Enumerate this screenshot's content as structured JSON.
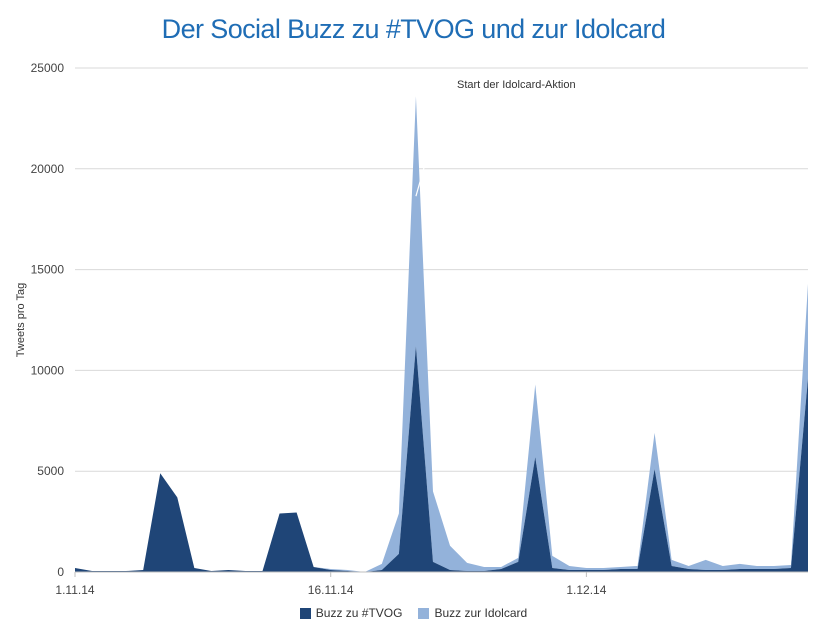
{
  "chart_data": {
    "type": "area",
    "title": "Der Social Buzz zu #TVOG und zur Idolcard",
    "ylabel": "Tweets pro Tag",
    "xlabel": "",
    "ylim": [
      0,
      25000
    ],
    "yticks": [
      0,
      5000,
      10000,
      15000,
      20000,
      25000
    ],
    "x_tick_labels": [
      {
        "index": 0,
        "label": "1.11.14"
      },
      {
        "index": 15,
        "label": "16.11.14"
      },
      {
        "index": 30,
        "label": "1.12.14"
      }
    ],
    "dates": [
      "1.11.14",
      "2.11.14",
      "3.11.14",
      "4.11.14",
      "5.11.14",
      "6.11.14",
      "7.11.14",
      "8.11.14",
      "9.11.14",
      "10.11.14",
      "11.11.14",
      "12.11.14",
      "13.11.14",
      "14.11.14",
      "15.11.14",
      "16.11.14",
      "17.11.14",
      "18.11.14",
      "19.11.14",
      "20.11.14",
      "21.11.14",
      "22.11.14",
      "23.11.14",
      "24.11.14",
      "25.11.14",
      "26.11.14",
      "27.11.14",
      "28.11.14",
      "29.11.14",
      "30.11.14",
      "1.12.14",
      "2.12.14",
      "3.12.14",
      "4.12.14",
      "5.12.14",
      "6.12.14",
      "7.12.14",
      "8.12.14",
      "9.12.14",
      "10.12.14",
      "11.12.14",
      "12.12.14",
      "13.12.14",
      "14.12.14"
    ],
    "series": [
      {
        "name": "Buzz zu #TVOG",
        "color": "#1f4577",
        "values": [
          200,
          50,
          50,
          50,
          100,
          4900,
          3700,
          200,
          50,
          100,
          50,
          50,
          2900,
          2950,
          250,
          100,
          50,
          0,
          100,
          900,
          11200,
          500,
          100,
          50,
          50,
          150,
          500,
          5700,
          200,
          100,
          100,
          100,
          150,
          150,
          5100,
          300,
          150,
          100,
          100,
          150,
          150,
          150,
          200,
          9600
        ]
      },
      {
        "name": "Buzz zur Idolcard",
        "color": "#93b2da",
        "values": [
          0,
          0,
          0,
          0,
          0,
          0,
          0,
          0,
          0,
          0,
          0,
          0,
          0,
          0,
          0,
          50,
          50,
          0,
          300,
          2000,
          12400,
          3500,
          1200,
          400,
          200,
          100,
          200,
          3600,
          600,
          200,
          100,
          100,
          100,
          150,
          1800,
          300,
          150,
          500,
          200,
          250,
          150,
          150,
          150,
          4700
        ]
      }
    ],
    "annotations": [
      {
        "text": "Start der Idolcard-Aktion",
        "x_index": 20,
        "y": 23600
      }
    ],
    "legend_position": "bottom",
    "grid": true
  }
}
